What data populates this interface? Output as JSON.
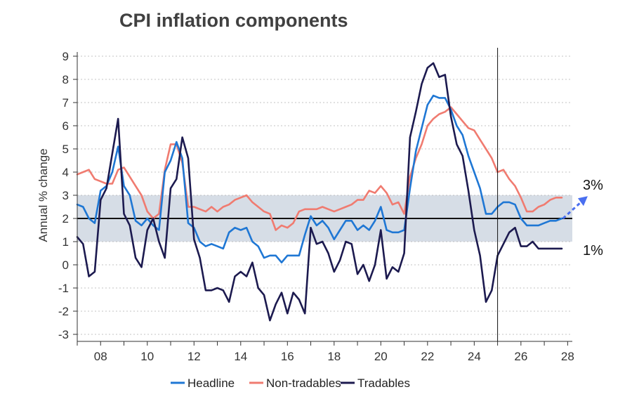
{
  "chart_data": {
    "type": "line",
    "title": "CPI inflation components",
    "ylabel": "Annual % change",
    "xlabel": "",
    "ylim": [
      -3,
      9
    ],
    "xlim": [
      2007,
      2028.2
    ],
    "yticks": [
      "-3",
      "-2",
      "-1",
      "0",
      "1",
      "2",
      "3",
      "4",
      "5",
      "6",
      "7",
      "8",
      "9"
    ],
    "xticks": [
      {
        "x": 2008,
        "label": "08"
      },
      {
        "x": 2010,
        "label": "10"
      },
      {
        "x": 2012,
        "label": "12"
      },
      {
        "x": 2014,
        "label": "14"
      },
      {
        "x": 2016,
        "label": "16"
      },
      {
        "x": 2018,
        "label": "18"
      },
      {
        "x": 2020,
        "label": "20"
      },
      {
        "x": 2022,
        "label": "22"
      },
      {
        "x": 2024,
        "label": "24"
      },
      {
        "x": 2026,
        "label": "26"
      },
      {
        "x": 2028,
        "label": "28"
      }
    ],
    "target_band": [
      1,
      3
    ],
    "target_line": 2,
    "forecast_start": 2025.0,
    "annotations": {
      "upper": "3%",
      "lower": "1%"
    },
    "legend_position": "bottom",
    "colors": {
      "Headline": "#1f77d4",
      "Non-tradables": "#f07b70",
      "Tradables": "#1c1a4f",
      "band": "#d6dde6",
      "arrow": "#4a6ff0"
    },
    "series": [
      {
        "name": "Headline",
        "points": [
          [
            2007.0,
            2.6
          ],
          [
            2007.25,
            2.5
          ],
          [
            2007.5,
            2.0
          ],
          [
            2007.75,
            1.8
          ],
          [
            2008.0,
            3.2
          ],
          [
            2008.25,
            3.4
          ],
          [
            2008.5,
            4.0
          ],
          [
            2008.75,
            5.1
          ],
          [
            2009.0,
            3.4
          ],
          [
            2009.25,
            3.0
          ],
          [
            2009.5,
            1.9
          ],
          [
            2009.75,
            1.7
          ],
          [
            2010.0,
            2.0
          ],
          [
            2010.25,
            1.7
          ],
          [
            2010.5,
            1.5
          ],
          [
            2010.75,
            4.0
          ],
          [
            2011.0,
            4.5
          ],
          [
            2011.25,
            5.3
          ],
          [
            2011.5,
            4.6
          ],
          [
            2011.75,
            1.8
          ],
          [
            2012.0,
            1.6
          ],
          [
            2012.25,
            1.0
          ],
          [
            2012.5,
            0.8
          ],
          [
            2012.75,
            0.9
          ],
          [
            2013.0,
            0.8
          ],
          [
            2013.25,
            0.7
          ],
          [
            2013.5,
            1.4
          ],
          [
            2013.75,
            1.6
          ],
          [
            2014.0,
            1.5
          ],
          [
            2014.25,
            1.6
          ],
          [
            2014.5,
            1.0
          ],
          [
            2014.75,
            0.8
          ],
          [
            2015.0,
            0.3
          ],
          [
            2015.25,
            0.4
          ],
          [
            2015.5,
            0.4
          ],
          [
            2015.75,
            0.1
          ],
          [
            2016.0,
            0.4
          ],
          [
            2016.25,
            0.4
          ],
          [
            2016.5,
            0.4
          ],
          [
            2016.75,
            1.3
          ],
          [
            2017.0,
            2.1
          ],
          [
            2017.25,
            1.7
          ],
          [
            2017.5,
            1.9
          ],
          [
            2017.75,
            1.6
          ],
          [
            2018.0,
            1.1
          ],
          [
            2018.25,
            1.5
          ],
          [
            2018.5,
            1.9
          ],
          [
            2018.75,
            1.9
          ],
          [
            2019.0,
            1.5
          ],
          [
            2019.25,
            1.7
          ],
          [
            2019.5,
            1.5
          ],
          [
            2019.75,
            1.9
          ],
          [
            2020.0,
            2.5
          ],
          [
            2020.25,
            1.5
          ],
          [
            2020.5,
            1.4
          ],
          [
            2020.75,
            1.4
          ],
          [
            2021.0,
            1.5
          ],
          [
            2021.25,
            3.3
          ],
          [
            2021.5,
            4.9
          ],
          [
            2021.75,
            5.9
          ],
          [
            2022.0,
            6.9
          ],
          [
            2022.25,
            7.3
          ],
          [
            2022.5,
            7.2
          ],
          [
            2022.75,
            7.2
          ],
          [
            2023.0,
            6.7
          ],
          [
            2023.25,
            6.0
          ],
          [
            2023.5,
            5.6
          ],
          [
            2023.75,
            4.7
          ],
          [
            2024.0,
            4.0
          ],
          [
            2024.25,
            3.3
          ],
          [
            2024.5,
            2.2
          ],
          [
            2024.75,
            2.2
          ],
          [
            2025.0,
            2.5
          ],
          [
            2025.25,
            2.7
          ],
          [
            2025.5,
            2.7
          ],
          [
            2025.75,
            2.6
          ],
          [
            2026.0,
            2.0
          ],
          [
            2026.25,
            1.7
          ],
          [
            2026.5,
            1.7
          ],
          [
            2026.75,
            1.7
          ],
          [
            2027.0,
            1.8
          ],
          [
            2027.25,
            1.9
          ],
          [
            2027.5,
            1.9
          ],
          [
            2027.75,
            2.0
          ]
        ]
      },
      {
        "name": "Non-tradables",
        "points": [
          [
            2007.0,
            3.9
          ],
          [
            2007.25,
            4.0
          ],
          [
            2007.5,
            4.1
          ],
          [
            2007.75,
            3.7
          ],
          [
            2008.0,
            3.6
          ],
          [
            2008.25,
            3.5
          ],
          [
            2008.5,
            3.5
          ],
          [
            2008.75,
            4.1
          ],
          [
            2009.0,
            4.2
          ],
          [
            2009.25,
            3.8
          ],
          [
            2009.5,
            3.4
          ],
          [
            2009.75,
            3.0
          ],
          [
            2010.0,
            2.3
          ],
          [
            2010.25,
            2.0
          ],
          [
            2010.5,
            2.2
          ],
          [
            2010.75,
            4.1
          ],
          [
            2011.0,
            5.2
          ],
          [
            2011.25,
            5.2
          ],
          [
            2011.5,
            4.4
          ],
          [
            2011.75,
            2.5
          ],
          [
            2012.0,
            2.5
          ],
          [
            2012.25,
            2.4
          ],
          [
            2012.5,
            2.3
          ],
          [
            2012.75,
            2.5
          ],
          [
            2013.0,
            2.3
          ],
          [
            2013.25,
            2.5
          ],
          [
            2013.5,
            2.6
          ],
          [
            2013.75,
            2.8
          ],
          [
            2014.0,
            2.9
          ],
          [
            2014.25,
            3.0
          ],
          [
            2014.5,
            2.7
          ],
          [
            2014.75,
            2.5
          ],
          [
            2015.0,
            2.3
          ],
          [
            2015.25,
            2.2
          ],
          [
            2015.5,
            1.5
          ],
          [
            2015.75,
            1.7
          ],
          [
            2016.0,
            1.6
          ],
          [
            2016.25,
            1.8
          ],
          [
            2016.5,
            2.3
          ],
          [
            2016.75,
            2.4
          ],
          [
            2017.0,
            2.4
          ],
          [
            2017.25,
            2.4
          ],
          [
            2017.5,
            2.5
          ],
          [
            2017.75,
            2.4
          ],
          [
            2018.0,
            2.3
          ],
          [
            2018.25,
            2.4
          ],
          [
            2018.5,
            2.5
          ],
          [
            2018.75,
            2.6
          ],
          [
            2019.0,
            2.8
          ],
          [
            2019.25,
            2.8
          ],
          [
            2019.5,
            3.2
          ],
          [
            2019.75,
            3.1
          ],
          [
            2020.0,
            3.4
          ],
          [
            2020.25,
            3.1
          ],
          [
            2020.5,
            2.6
          ],
          [
            2020.75,
            2.7
          ],
          [
            2021.0,
            2.2
          ],
          [
            2021.25,
            3.8
          ],
          [
            2021.5,
            4.6
          ],
          [
            2021.75,
            5.2
          ],
          [
            2022.0,
            6.0
          ],
          [
            2022.25,
            6.3
          ],
          [
            2022.5,
            6.5
          ],
          [
            2022.75,
            6.6
          ],
          [
            2023.0,
            6.8
          ],
          [
            2023.25,
            6.5
          ],
          [
            2023.5,
            6.2
          ],
          [
            2023.75,
            5.9
          ],
          [
            2024.0,
            5.8
          ],
          [
            2024.25,
            5.4
          ],
          [
            2024.5,
            5.0
          ],
          [
            2024.75,
            4.6
          ],
          [
            2025.0,
            4.0
          ],
          [
            2025.25,
            4.1
          ],
          [
            2025.5,
            3.7
          ],
          [
            2025.75,
            3.4
          ],
          [
            2026.0,
            2.9
          ],
          [
            2026.25,
            2.3
          ],
          [
            2026.5,
            2.3
          ],
          [
            2026.75,
            2.5
          ],
          [
            2027.0,
            2.6
          ],
          [
            2027.25,
            2.8
          ],
          [
            2027.5,
            2.9
          ],
          [
            2027.75,
            2.9
          ]
        ]
      },
      {
        "name": "Tradables",
        "points": [
          [
            2007.0,
            1.2
          ],
          [
            2007.25,
            0.9
          ],
          [
            2007.5,
            -0.5
          ],
          [
            2007.75,
            -0.3
          ],
          [
            2008.0,
            2.8
          ],
          [
            2008.25,
            3.3
          ],
          [
            2008.5,
            4.8
          ],
          [
            2008.75,
            6.3
          ],
          [
            2009.0,
            2.2
          ],
          [
            2009.25,
            1.7
          ],
          [
            2009.5,
            0.3
          ],
          [
            2009.75,
            -0.1
          ],
          [
            2010.0,
            1.5
          ],
          [
            2010.25,
            2.0
          ],
          [
            2010.5,
            1.0
          ],
          [
            2010.75,
            0.3
          ],
          [
            2011.0,
            3.3
          ],
          [
            2011.25,
            3.7
          ],
          [
            2011.5,
            5.5
          ],
          [
            2011.75,
            4.6
          ],
          [
            2012.0,
            1.1
          ],
          [
            2012.25,
            0.3
          ],
          [
            2012.5,
            -1.1
          ],
          [
            2012.75,
            -1.1
          ],
          [
            2013.0,
            -1.0
          ],
          [
            2013.25,
            -1.1
          ],
          [
            2013.5,
            -1.6
          ],
          [
            2013.75,
            -0.5
          ],
          [
            2014.0,
            -0.3
          ],
          [
            2014.25,
            -0.5
          ],
          [
            2014.5,
            0.1
          ],
          [
            2014.75,
            -1.0
          ],
          [
            2015.0,
            -1.3
          ],
          [
            2015.25,
            -2.4
          ],
          [
            2015.5,
            -1.7
          ],
          [
            2015.75,
            -1.2
          ],
          [
            2016.0,
            -2.1
          ],
          [
            2016.25,
            -1.2
          ],
          [
            2016.5,
            -1.5
          ],
          [
            2016.75,
            -2.1
          ],
          [
            2017.0,
            1.6
          ],
          [
            2017.25,
            0.9
          ],
          [
            2017.5,
            1.0
          ],
          [
            2017.75,
            0.5
          ],
          [
            2018.0,
            -0.3
          ],
          [
            2018.25,
            0.2
          ],
          [
            2018.5,
            1.0
          ],
          [
            2018.75,
            0.9
          ],
          [
            2019.0,
            -0.4
          ],
          [
            2019.25,
            0.0
          ],
          [
            2019.5,
            -0.7
          ],
          [
            2019.75,
            0.0
          ],
          [
            2020.0,
            1.5
          ],
          [
            2020.25,
            -0.6
          ],
          [
            2020.5,
            -0.1
          ],
          [
            2020.75,
            -0.3
          ],
          [
            2021.0,
            0.5
          ],
          [
            2021.25,
            5.5
          ],
          [
            2021.5,
            6.6
          ],
          [
            2021.75,
            7.8
          ],
          [
            2022.0,
            8.5
          ],
          [
            2022.25,
            8.7
          ],
          [
            2022.5,
            8.1
          ],
          [
            2022.75,
            8.2
          ],
          [
            2023.0,
            6.4
          ],
          [
            2023.25,
            5.2
          ],
          [
            2023.5,
            4.7
          ],
          [
            2023.75,
            3.2
          ],
          [
            2024.0,
            1.5
          ],
          [
            2024.25,
            0.4
          ],
          [
            2024.5,
            -1.6
          ],
          [
            2024.75,
            -1.1
          ],
          [
            2025.0,
            0.4
          ],
          [
            2025.25,
            0.9
          ],
          [
            2025.5,
            1.4
          ],
          [
            2025.75,
            1.6
          ],
          [
            2026.0,
            0.8
          ],
          [
            2026.25,
            0.8
          ],
          [
            2026.5,
            1.0
          ],
          [
            2026.75,
            0.7
          ],
          [
            2027.0,
            0.7
          ],
          [
            2027.25,
            0.7
          ],
          [
            2027.5,
            0.7
          ],
          [
            2027.75,
            0.7
          ]
        ]
      }
    ]
  }
}
